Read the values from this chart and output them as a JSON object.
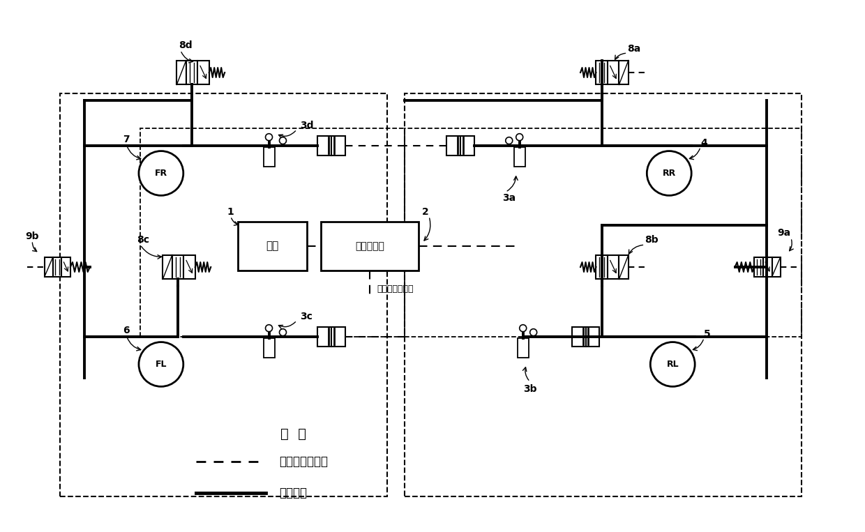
{
  "bg_color": "#ffffff",
  "legend_title": "图  例",
  "legend_dashed_label": "信号线和电源线",
  "legend_solid_label": "制动管路",
  "labels": {
    "8a": "8a",
    "8b": "8b",
    "8c": "8c",
    "8d": "8d",
    "3a": "3a",
    "3b": "3b",
    "3c": "3c",
    "3d": "3d",
    "9a": "9a",
    "9b": "9b",
    "FR": "FR",
    "FL": "FL",
    "RR": "RR",
    "RL": "RL",
    "num1": "1",
    "num2": "2",
    "num4": "4",
    "num5": "5",
    "num6": "6",
    "num7": "7",
    "power": "电源",
    "ctrl": "制动控制器",
    "other": "至其它电控系统"
  }
}
